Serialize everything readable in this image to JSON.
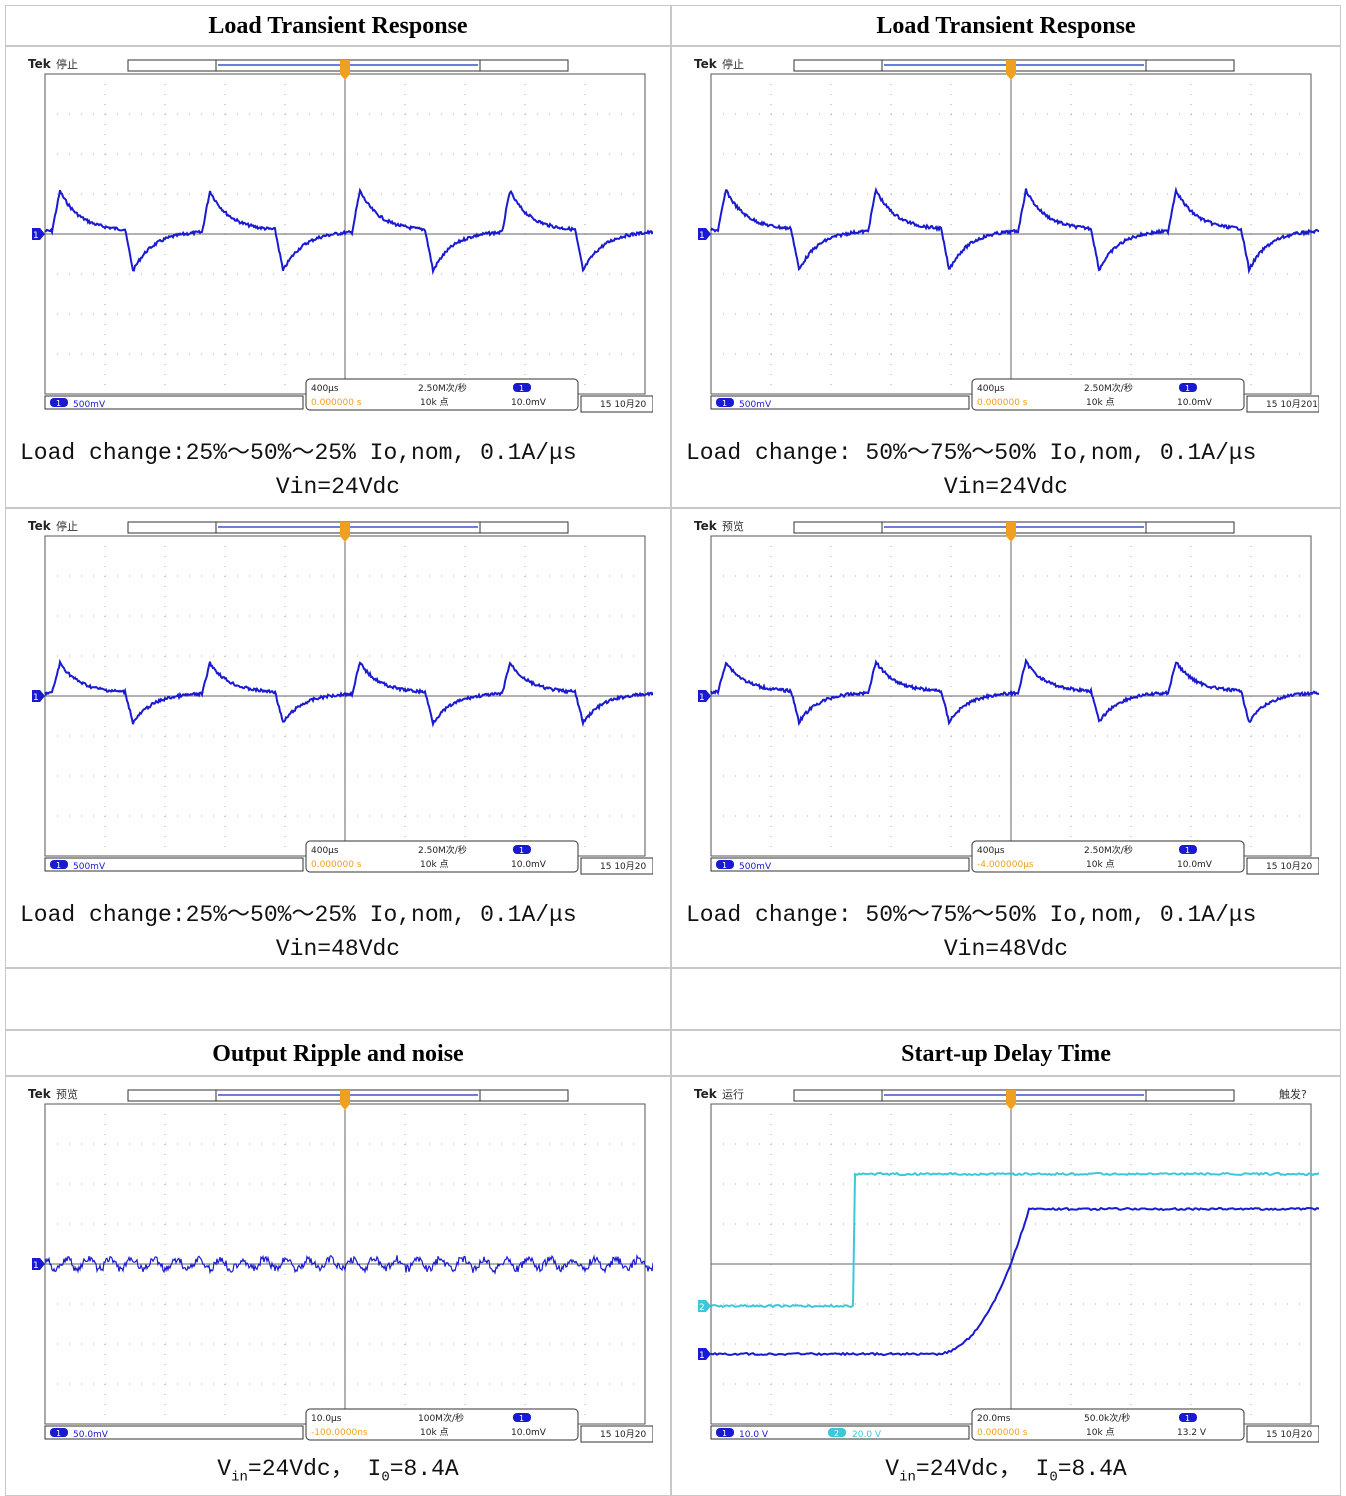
{
  "scope_brand": "Tek",
  "channel_ids": [
    "1",
    "2"
  ],
  "panels": [
    {
      "title": "Load Transient Response",
      "scope": {
        "status": "停止",
        "ch1": "500mV",
        "timebase": "400μs",
        "rate": "2.50M次/秒",
        "trig_pos": "0.000000 s",
        "record": "10k 点",
        "trig_level": "10.0mV",
        "date": "15 10月20"
      },
      "caption": [
        "Load change:25%～50%～25% Io,nom, 0.1A/μs",
        "Vin=24Vdc"
      ]
    },
    {
      "title": "Load Transient Response",
      "scope": {
        "status": "停止",
        "ch1": "500mV",
        "timebase": "400μs",
        "rate": "2.50M次/秒",
        "trig_pos": "0.000000 s",
        "record": "10k 点",
        "trig_level": "10.0mV",
        "date": "15 10月201"
      },
      "caption": [
        "Load change: 50%～75%～50% Io,nom, 0.1A/μs",
        "Vin=24Vdc"
      ]
    },
    {
      "scope": {
        "status": "停止",
        "ch1": "500mV",
        "timebase": "400μs",
        "rate": "2.50M次/秒",
        "trig_pos": "0.000000 s",
        "record": "10k 点",
        "trig_level": "10.0mV",
        "date": "15 10月20"
      },
      "caption": [
        "Load change:25%～50%～25% Io,nom, 0.1A/μs",
        "Vin=48Vdc"
      ]
    },
    {
      "scope": {
        "status": "预览",
        "ch1": "500mV",
        "timebase": "400μs",
        "rate": "2.50M次/秒",
        "trig_pos": "-4.000000μs",
        "record": "10k 点",
        "trig_level": "10.0mV",
        "date": "15 10月20"
      },
      "caption": [
        "Load change: 50%～75%～50% Io,nom, 0.1A/μs",
        "Vin=48Vdc"
      ]
    },
    {
      "title": "Output Ripple and noise",
      "scope": {
        "status": "预览",
        "ch1": "50.0mV",
        "timebase": "10.0μs",
        "rate": "100M次/秒",
        "trig_pos": "-100.0000ns",
        "record": "10k 点",
        "trig_level": "10.0mV",
        "date": "15 10月20"
      },
      "caption_parts": [
        "V",
        "in",
        "=24Vdc， I",
        "0",
        "=8.4A"
      ]
    },
    {
      "title": "Start-up Delay Time",
      "scope": {
        "status": "运行",
        "trig_state": "触发?",
        "ch1": "10.0 V",
        "ch2": "20.0 V",
        "timebase": "20.0ms",
        "rate": "50.0k次/秒",
        "trig_pos": "0.000000 s",
        "record": "10k 点",
        "trig_level": "13.2 V",
        "date": "15 10月20"
      },
      "caption_parts": [
        "V",
        "in",
        "=24Vdc， I",
        "0",
        "=8.4A"
      ]
    }
  ]
}
